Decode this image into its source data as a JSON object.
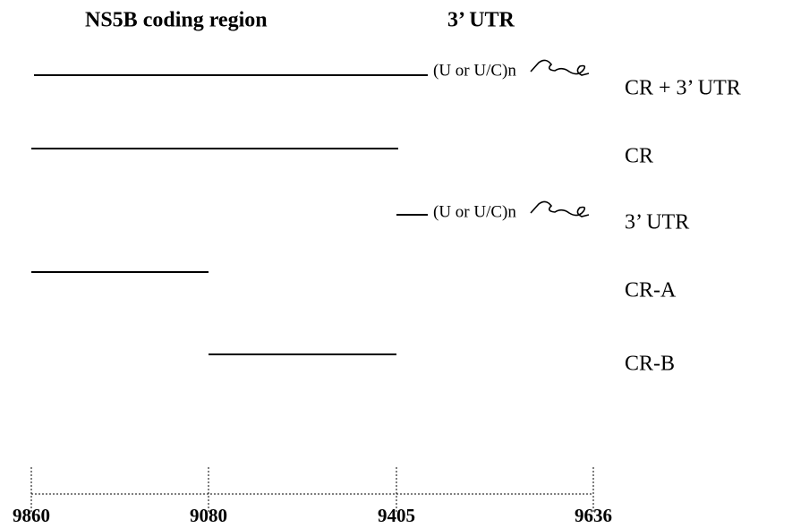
{
  "header": {
    "coding_region": "NS5B coding region",
    "utr": "3’ UTR"
  },
  "constructs": [
    {
      "label": "CR + 3’ UTR",
      "tail": "(U or U/C)n"
    },
    {
      "label": "CR"
    },
    {
      "label": "3’  UTR",
      "tail": "(U or U/C)n"
    },
    {
      "label": "CR-A"
    },
    {
      "label": "CR-B"
    }
  ],
  "axis": {
    "ticks": [
      "9860",
      "9080",
      "9405",
      "9636"
    ]
  }
}
